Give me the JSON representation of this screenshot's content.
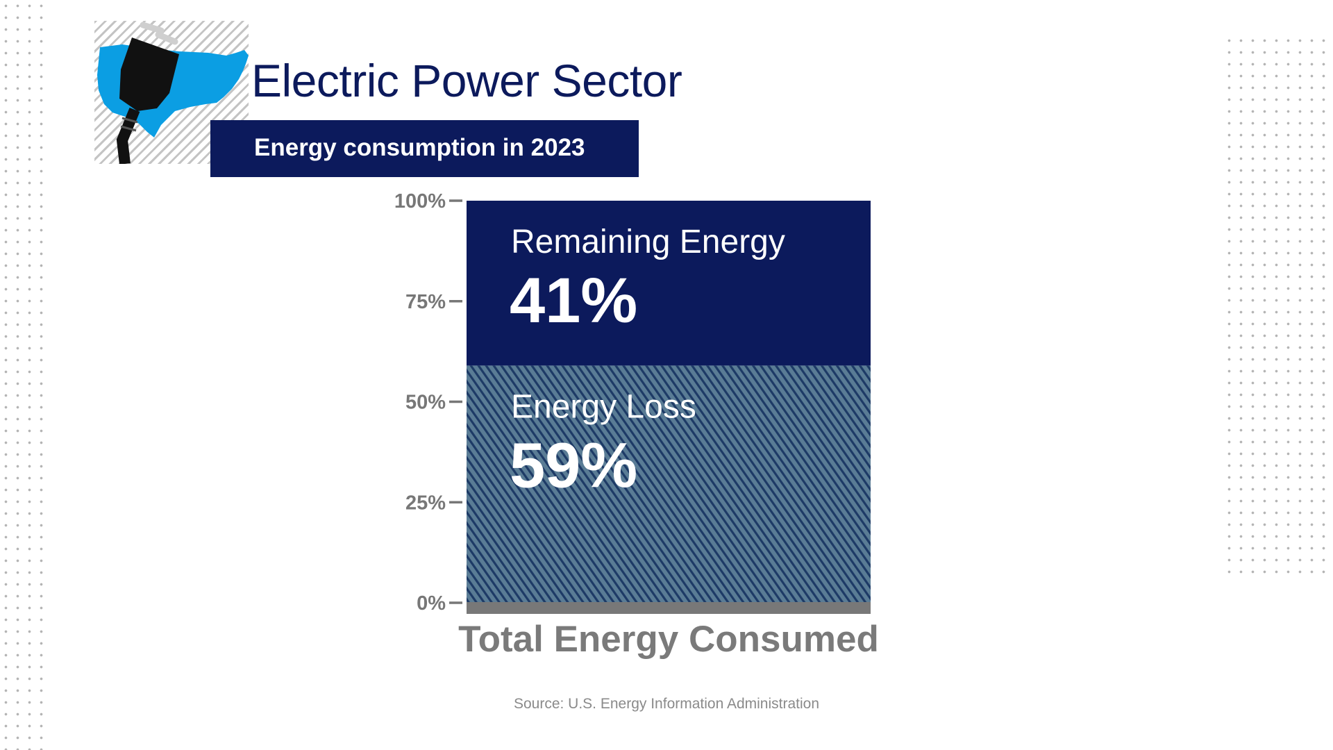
{
  "header": {
    "title": "Electric Power Sector",
    "subtitle": "Energy consumption in 2023"
  },
  "logo": {
    "map_color": "#0b9ee3",
    "plug_color": "#111111"
  },
  "chart_data": {
    "type": "bar",
    "stacked": true,
    "categories": [
      "Total Energy Consumed"
    ],
    "series": [
      {
        "name": "Energy Loss",
        "values": [
          59
        ],
        "label": "59%",
        "color": "#4d6d85",
        "pattern": "diagonal-hatch"
      },
      {
        "name": "Remaining Energy",
        "values": [
          41
        ],
        "label": "41%",
        "color": "#0c1a5c"
      }
    ],
    "ylim": [
      0,
      100
    ],
    "yticks": [
      0,
      25,
      50,
      75,
      100
    ],
    "ytick_labels": [
      "0%",
      "25%",
      "50%",
      "75%",
      "100%"
    ],
    "xlabel": "",
    "ylabel": "",
    "grid": false,
    "legend": "none"
  },
  "footer": {
    "source": "Source: U.S. Energy Information Administration"
  }
}
